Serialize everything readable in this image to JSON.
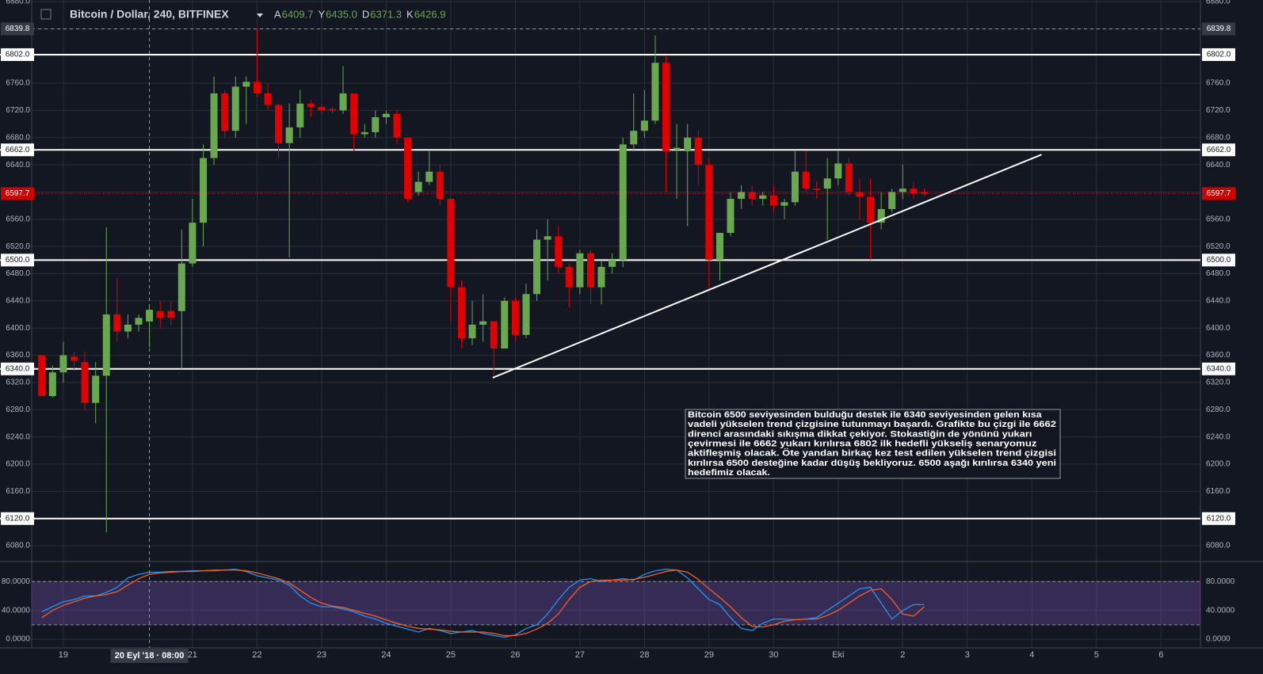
{
  "chart_data": [
    {
      "type": "candlestick",
      "title": "Bitcoin / Dollar, 240, BITFINEX",
      "ohlc_header": [
        {
          "label": "A",
          "value": "6409.7"
        },
        {
          "label": "Y",
          "value": "6435.0"
        },
        {
          "label": "D",
          "value": "6371.3"
        },
        {
          "label": "K",
          "value": "6426.9"
        }
      ],
      "x": [
        -0.333,
        -0.167,
        0,
        0.167,
        0.333,
        0.5,
        0.667,
        0.833,
        1,
        1.167,
        1.333,
        1.5,
        1.667,
        1.833,
        2,
        2.167,
        2.333,
        2.5,
        2.667,
        2.833,
        3,
        3.167,
        3.333,
        3.5,
        3.667,
        3.833,
        4,
        4.167,
        4.333,
        4.5,
        4.667,
        4.833,
        5,
        5.167,
        5.333,
        5.5,
        5.667,
        5.833,
        6,
        6.167,
        6.333,
        6.5,
        6.667,
        6.833,
        7,
        7.167,
        7.333,
        7.5,
        7.667,
        7.833,
        8,
        8.167,
        8.333,
        8.5,
        8.667,
        8.833,
        9,
        9.167,
        9.333,
        9.5,
        9.667,
        9.833,
        10,
        10.167,
        10.333,
        10.5,
        10.667,
        10.833,
        11,
        11.167,
        11.333,
        11.5,
        11.667,
        11.833,
        12,
        12.167,
        12.333,
        12.5,
        12.667,
        12.833,
        13,
        13.167,
        13.333
      ],
      "open": [
        6360,
        6300,
        6335,
        6358,
        6350,
        6290,
        6330,
        6420,
        6395,
        6405,
        6409.7,
        6425,
        6425,
        6425,
        6495,
        6555,
        6650,
        6745,
        6690,
        6755,
        6762,
        6745,
        6728,
        6672,
        6695,
        6730,
        6725,
        6722,
        6720,
        6745,
        6685,
        6688,
        6710,
        6715,
        6680,
        6600,
        6615,
        6630,
        6590,
        6460,
        6385,
        6405,
        6410,
        6370,
        6440,
        6390,
        6450,
        6530,
        6535,
        6490,
        6460,
        6510,
        6460,
        6490,
        6500,
        6670,
        6690,
        6705,
        6790,
        6662,
        6660,
        6680,
        6640,
        6500,
        6540,
        6590,
        6600,
        6590,
        6595,
        6580,
        6585,
        6630,
        6605,
        6605,
        6620,
        6642,
        6600,
        6593,
        6555,
        6575,
        6600,
        6605,
        6600
      ],
      "high": [
        6360,
        6345,
        6380,
        6365,
        6365,
        6350,
        6548,
        6475,
        6420,
        6420,
        6435,
        6440,
        6440,
        6545,
        6590,
        6670,
        6770,
        6750,
        6770,
        6770,
        6840,
        6760,
        6730,
        6730,
        6750,
        6735,
        6728,
        6725,
        6785,
        6745,
        6700,
        6720,
        6720,
        6720,
        6680,
        6630,
        6660,
        6640,
        6590,
        6470,
        6440,
        6450,
        6410,
        6445,
        6445,
        6465,
        6545,
        6560,
        6550,
        6495,
        6515,
        6515,
        6500,
        6510,
        6680,
        6745,
        6750,
        6830,
        6800,
        6700,
        6700,
        6690,
        6650,
        6540,
        6600,
        6610,
        6610,
        6600,
        6610,
        6590,
        6660,
        6660,
        6615,
        6650,
        6660,
        6650,
        6620,
        6620,
        6600,
        6605,
        6640,
        6615,
        6605
      ],
      "low": [
        6300,
        6298,
        6320,
        6340,
        6280,
        6260,
        6100,
        6380,
        6385,
        6395,
        6371.3,
        6400,
        6405,
        6340,
        6490,
        6520,
        6640,
        6680,
        6680,
        6700,
        6740,
        6720,
        6650,
        6504,
        6680,
        6710,
        6715,
        6715,
        6715,
        6660,
        6680,
        6680,
        6700,
        6670,
        6585,
        6595,
        6610,
        6580,
        6410,
        6370,
        6375,
        6380,
        6330,
        6370,
        6380,
        6385,
        6440,
        6470,
        6480,
        6430,
        6450,
        6435,
        6435,
        6480,
        6490,
        6660,
        6680,
        6700,
        6600,
        6590,
        6550,
        6610,
        6455,
        6470,
        6535,
        6575,
        6580,
        6580,
        6570,
        6560,
        6580,
        6600,
        6590,
        6530,
        6610,
        6595,
        6560,
        6500,
        6545,
        6570,
        6590,
        6590,
        6595
      ],
      "close": [
        6300,
        6335,
        6360,
        6352,
        6290,
        6330,
        6420,
        6395,
        6405,
        6415,
        6426.9,
        6415,
        6415,
        6495,
        6555,
        6650,
        6745,
        6690,
        6755,
        6762,
        6745,
        6728,
        6672,
        6695,
        6730,
        6725,
        6720,
        6720,
        6745,
        6685,
        6688,
        6710,
        6715,
        6680,
        6590,
        6615,
        6630,
        6590,
        6460,
        6385,
        6405,
        6410,
        6370,
        6440,
        6390,
        6450,
        6530,
        6535,
        6490,
        6460,
        6510,
        6460,
        6490,
        6500,
        6670,
        6690,
        6705,
        6790,
        6660,
        6665,
        6680,
        6640,
        6500,
        6540,
        6590,
        6600,
        6590,
        6595,
        6580,
        6585,
        6630,
        6605,
        6603,
        6620,
        6642,
        6600,
        6593,
        6555,
        6575,
        6600,
        6605,
        6598,
        6597.7
      ],
      "up_color": "#6aa84f",
      "down_color": "#e00000",
      "xlim": [
        -0.49,
        17.61
      ],
      "xticks": [
        {
          "value": 0,
          "label": "19"
        },
        {
          "value": 2,
          "label": "21"
        },
        {
          "value": 3,
          "label": "22"
        },
        {
          "value": 4,
          "label": "23"
        },
        {
          "value": 5,
          "label": "24"
        },
        {
          "value": 6,
          "label": "25"
        },
        {
          "value": 7,
          "label": "26"
        },
        {
          "value": 8,
          "label": "27"
        },
        {
          "value": 9,
          "label": "28"
        },
        {
          "value": 10,
          "label": "29"
        },
        {
          "value": 11,
          "label": "30"
        },
        {
          "value": 12,
          "label": "Eki"
        },
        {
          "value": 13,
          "label": "2"
        },
        {
          "value": 14,
          "label": "3"
        },
        {
          "value": 15,
          "label": "4"
        },
        {
          "value": 16,
          "label": "5"
        },
        {
          "value": 17,
          "label": "6"
        }
      ],
      "ylim": [
        6058,
        6882.3
      ],
      "yticks": [
        {
          "value": 6080,
          "label": "6080.0"
        },
        {
          "value": 6120,
          "label": "6120.0"
        },
        {
          "value": 6160,
          "label": "6160.0"
        },
        {
          "value": 6200,
          "label": "6200.0"
        },
        {
          "value": 6240,
          "label": "6240.0"
        },
        {
          "value": 6280,
          "label": "6280.0"
        },
        {
          "value": 6320,
          "label": "6320.0"
        },
        {
          "value": 6360,
          "label": "6360.0"
        },
        {
          "value": 6400,
          "label": "6400.0"
        },
        {
          "value": 6440,
          "label": "6440.0"
        },
        {
          "value": 6480,
          "label": "6480.0"
        },
        {
          "value": 6520,
          "label": "6520.0"
        },
        {
          "value": 6560,
          "label": "6560.0"
        },
        {
          "value": 6600,
          "label": "6600.0"
        },
        {
          "value": 6640,
          "label": "6640.0"
        },
        {
          "value": 6680,
          "label": "6680.0"
        },
        {
          "value": 6720,
          "label": "6720.0"
        },
        {
          "value": 6760,
          "label": "6760.0"
        },
        {
          "value": 6800,
          "label": "6800.0"
        },
        {
          "value": 6840,
          "label": "6840.0"
        },
        {
          "value": 6880,
          "label": "6880.0"
        }
      ],
      "grid": true,
      "levels": [
        {
          "value": 6802,
          "label": "6802.0"
        },
        {
          "value": 6662,
          "label": "6662.0"
        },
        {
          "value": 6500,
          "label": "6500.0"
        },
        {
          "value": 6340,
          "label": "6340.0"
        },
        {
          "value": 6120,
          "label": "6120.0"
        }
      ],
      "last_price": {
        "value": 6597.7,
        "label": "6597.7"
      },
      "crosshair": {
        "price": {
          "value": 6839.8,
          "label": "6839.8"
        },
        "x": 1.333,
        "x_label": "20 Eyl '18 · 08:00"
      },
      "trendline": {
        "x": [
          6.65,
          15.15
        ],
        "y": [
          6327,
          6655
        ]
      },
      "annotation": [
        "Bitcoin 6500 seviyesinden bulduğu destek ile 6340 seviyesinden gelen kısa",
        "vadeli yükselen trend çizgisine tutunmayı başardı. Grafikte bu çizgi ile 6662",
        "direnci arasındaki sıkışma dikkat çekiyor. Stokastiğin de yönünü yukarı",
        "çevirmesi ile 6662 yukarı kırılırsa 6802 ilk hedefli yükseliş senaryomuz",
        "aktifleşmiş olacak. Öte yandan birkaç kez test edilen yükselen trend çizgisi",
        "kırılırsa 6500 desteğine kadar düşüş bekliyoruz. 6500 aşağı kırılırsa 6340 yeni",
        "hedefimiz olacak."
      ]
    },
    {
      "type": "line",
      "series": [
        {
          "color": "#2196f3",
          "values": [
            38,
            45,
            52,
            55,
            60,
            60,
            65,
            72,
            85,
            90,
            93,
            93,
            94,
            94,
            95,
            95,
            96,
            96,
            97,
            94,
            88,
            85,
            82,
            75,
            60,
            50,
            45,
            45,
            42,
            38,
            32,
            28,
            22,
            18,
            14,
            10,
            15,
            12,
            8,
            10,
            12,
            8,
            5,
            3,
            6,
            15,
            20,
            35,
            55,
            72,
            82,
            84,
            80,
            82,
            84,
            82,
            90,
            95,
            97,
            96,
            85,
            70,
            55,
            48,
            30,
            15,
            12,
            22,
            28,
            28,
            27,
            28,
            30,
            40,
            50,
            60,
            70,
            72,
            50,
            28,
            40,
            48,
            48
          ]
        },
        {
          "color": "#f0602a",
          "values": [
            30,
            40,
            47,
            52,
            57,
            60,
            62,
            66,
            75,
            84,
            90,
            92,
            93,
            94,
            94,
            95,
            95,
            96,
            96,
            95,
            92,
            88,
            84,
            78,
            68,
            58,
            50,
            46,
            44,
            40,
            36,
            32,
            27,
            22,
            18,
            15,
            14,
            13,
            11,
            10,
            10,
            10,
            8,
            5,
            5,
            8,
            14,
            22,
            35,
            55,
            72,
            80,
            82,
            82,
            82,
            83,
            86,
            90,
            94,
            96,
            93,
            83,
            70,
            58,
            45,
            30,
            18,
            17,
            20,
            25,
            27,
            28,
            28,
            33,
            40,
            50,
            60,
            68,
            70,
            55,
            35,
            32,
            45
          ]
        }
      ],
      "band": [
        20,
        80
      ],
      "ylim": [
        -12,
        106.7
      ],
      "yticks": [
        {
          "value": 0,
          "label": "0.0000"
        },
        {
          "value": 40,
          "label": "40.0000"
        },
        {
          "value": 80,
          "label": "80.0000"
        }
      ],
      "grid": true
    }
  ]
}
